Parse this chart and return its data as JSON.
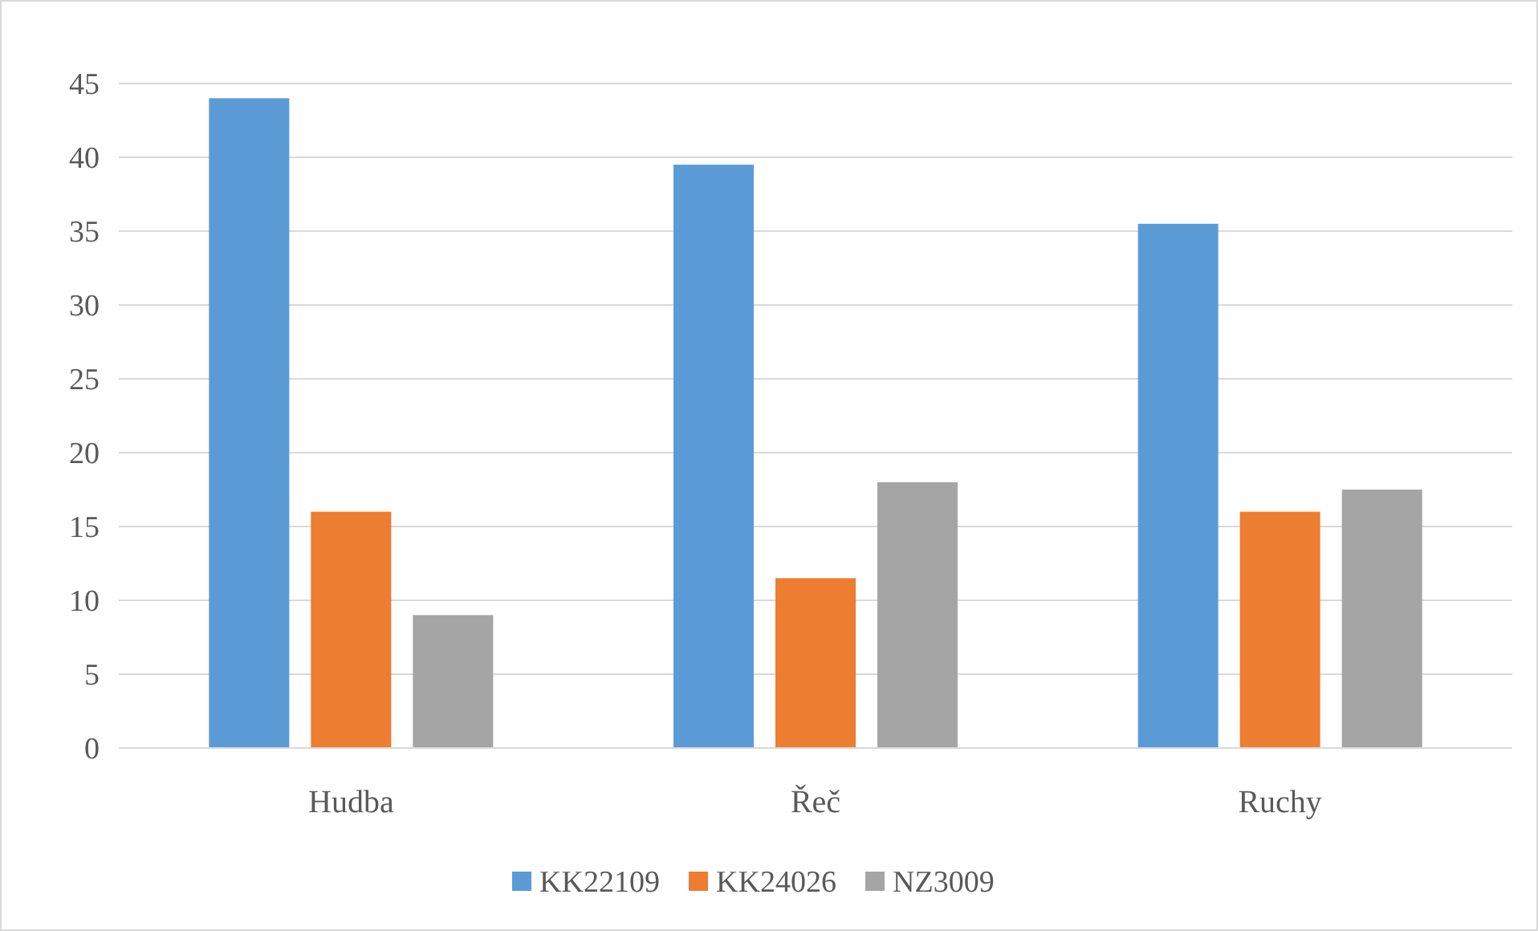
{
  "chart_data": {
    "type": "bar",
    "categories": [
      "Hudba",
      "Řeč",
      "Ruchy"
    ],
    "series": [
      {
        "name": "KK22109",
        "color": "#5b9bd5",
        "values": [
          44,
          39.5,
          35.5
        ]
      },
      {
        "name": "KK24026",
        "color": "#ed7d31",
        "values": [
          16,
          11.5,
          16
        ]
      },
      {
        "name": "NZ3009",
        "color": "#a5a5a5",
        "values": [
          9,
          18,
          17.5
        ]
      }
    ],
    "ylim": [
      0,
      45
    ],
    "yticks": [
      0,
      5,
      10,
      15,
      20,
      25,
      30,
      35,
      40,
      45
    ],
    "grid": "y",
    "legend": "bottom"
  }
}
